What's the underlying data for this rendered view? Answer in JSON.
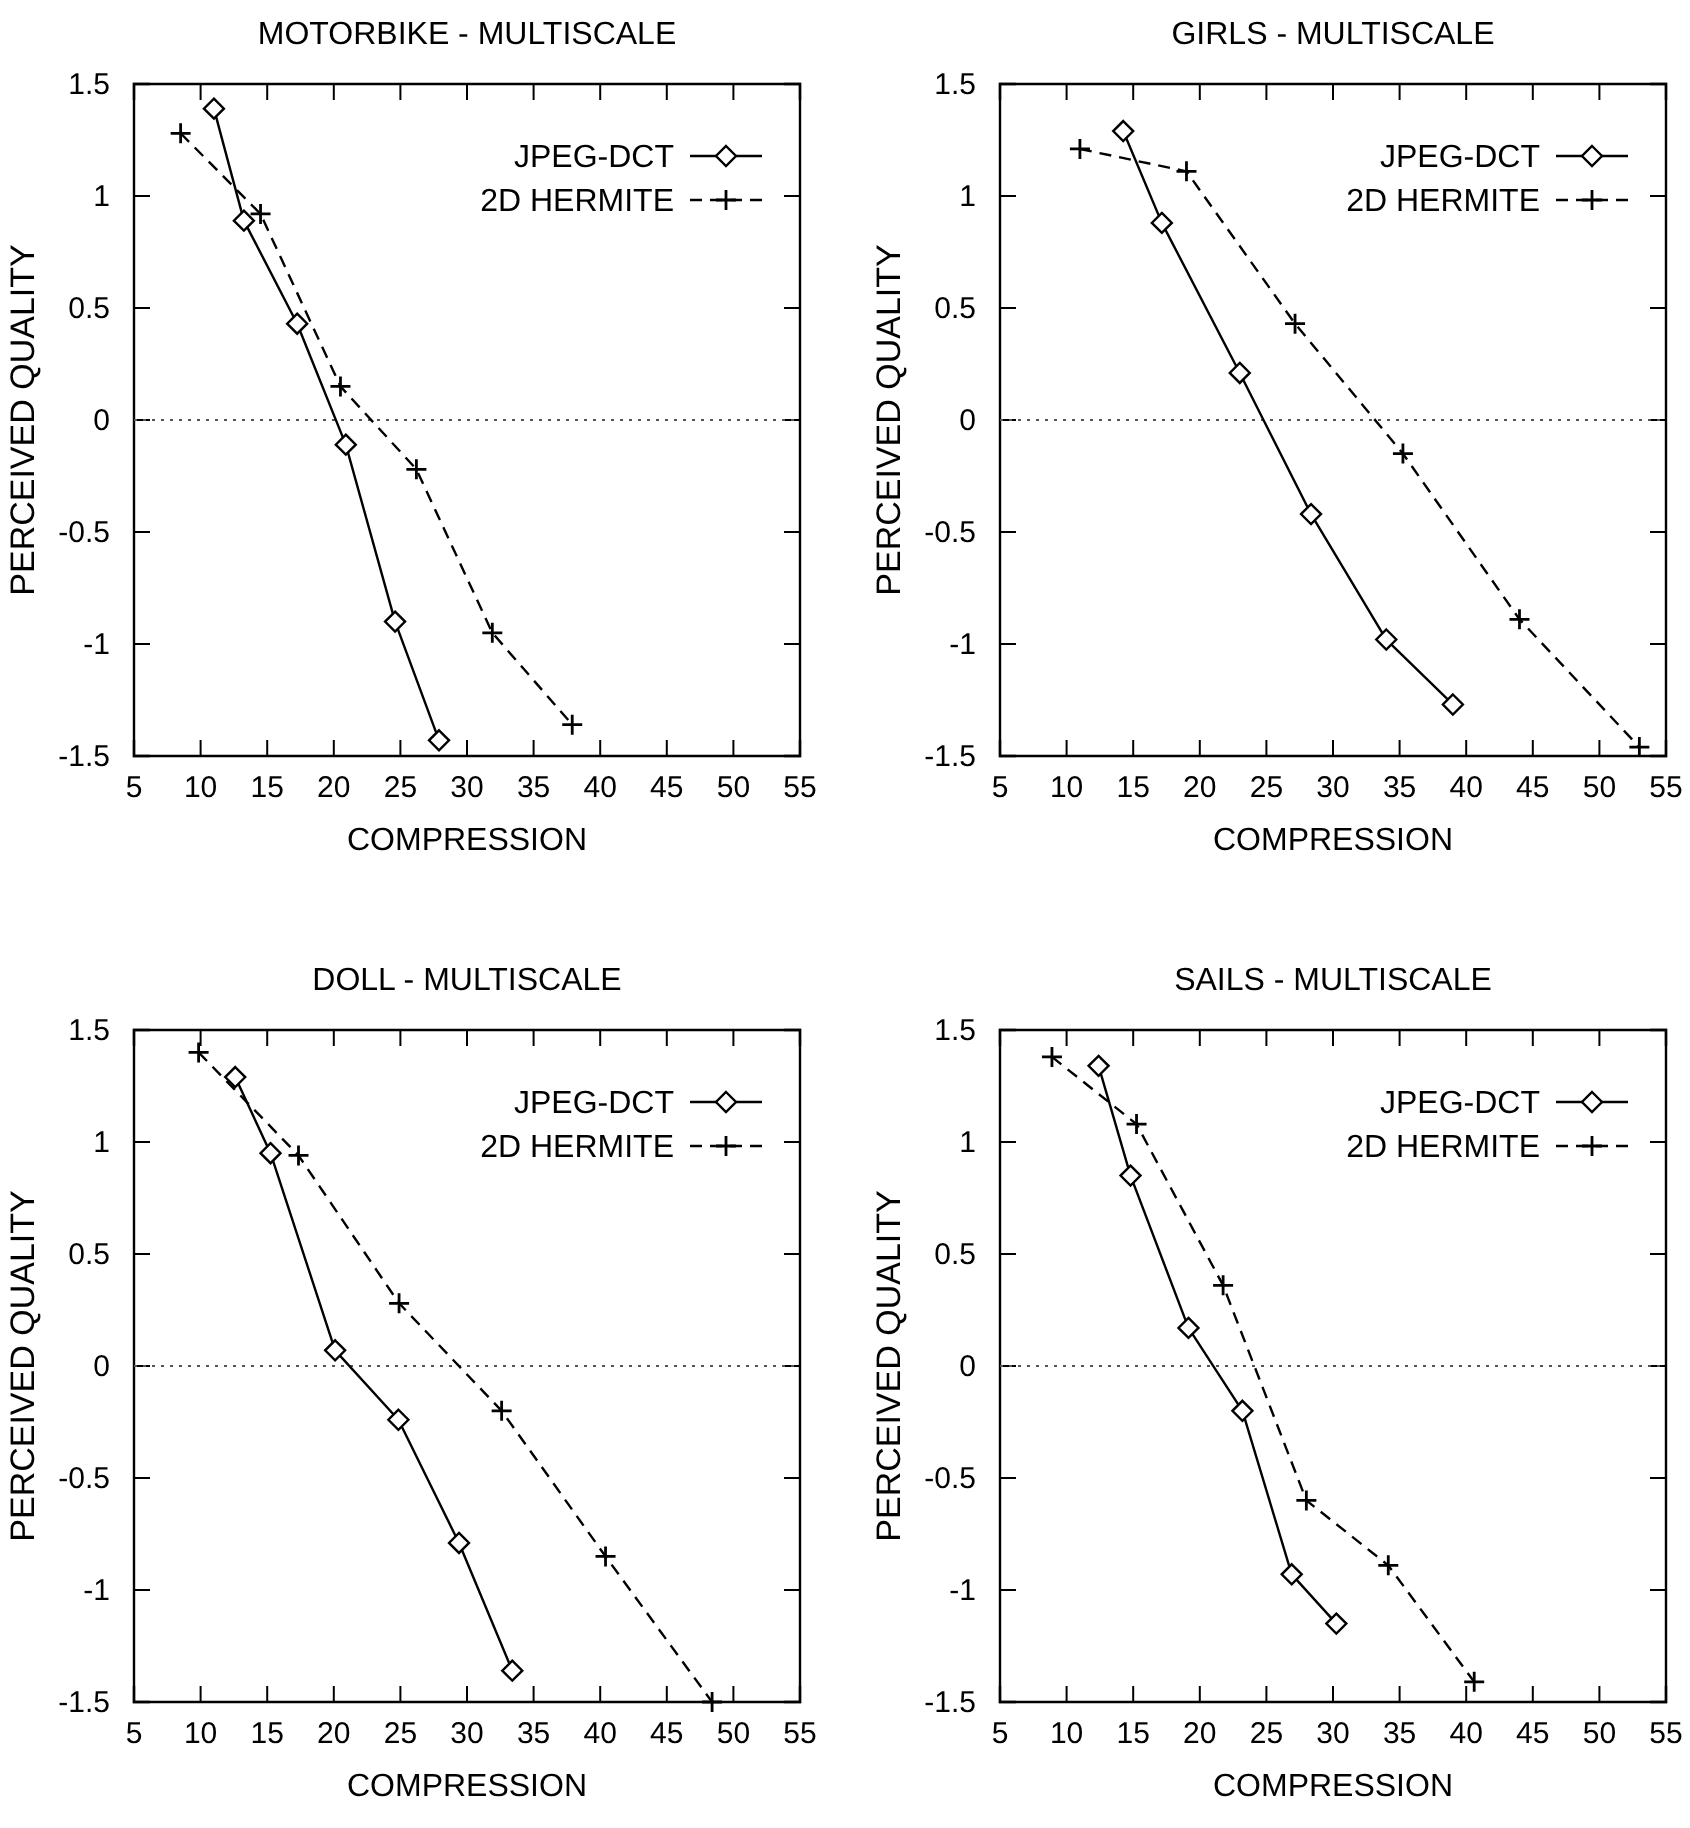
{
  "chart_data": [
    {
      "type": "line",
      "title": "MOTORBIKE  - MULTISCALE",
      "xlabel": "COMPRESSION",
      "ylabel": "PERCEIVED QUALITY",
      "xlim": [
        5,
        55
      ],
      "xticks": [
        5,
        10,
        15,
        20,
        25,
        30,
        35,
        40,
        45,
        50,
        55
      ],
      "ylim": [
        -1.5,
        1.5
      ],
      "yticks": [
        -1.5,
        -1,
        -0.5,
        0,
        0.5,
        1,
        1.5
      ],
      "legend": "top right",
      "grid": false,
      "ref_lines": [
        {
          "axis": "y",
          "value": 0,
          "line_style": "dotted"
        }
      ],
      "series": [
        {
          "name": "JPEG-DCT",
          "color": "#000000",
          "marker": "diamond",
          "line_style": "solid",
          "x": [
            11,
            13.25,
            17.25,
            20.9,
            24.6,
            27.9
          ],
          "values": [
            1.39,
            0.89,
            0.43,
            -0.11,
            -0.9,
            -1.43
          ]
        },
        {
          "name": "2D HERMITE",
          "color": "#000000",
          "marker": "cross",
          "line_style": "dashed",
          "x": [
            8.5,
            14.5,
            20.5,
            26.2,
            31.9,
            37.9
          ],
          "values": [
            1.28,
            0.92,
            0.15,
            -0.22,
            -0.95,
            -1.36
          ]
        }
      ]
    },
    {
      "type": "line",
      "title": "GIRLS  - MULTISCALE",
      "xlabel": "COMPRESSION",
      "ylabel": "PERCEIVED QUALITY",
      "xlim": [
        5,
        55
      ],
      "xticks": [
        5,
        10,
        15,
        20,
        25,
        30,
        35,
        40,
        45,
        50,
        55
      ],
      "ylim": [
        -1.5,
        1.5
      ],
      "yticks": [
        -1.5,
        -1,
        -0.5,
        0,
        0.5,
        1,
        1.5
      ],
      "legend": "top right",
      "grid": false,
      "ref_lines": [
        {
          "axis": "y",
          "value": 0,
          "line_style": "dotted"
        }
      ],
      "series": [
        {
          "name": "JPEG-DCT",
          "color": "#000000",
          "marker": "diamond",
          "line_style": "solid",
          "x": [
            14.25,
            17.15,
            23,
            28.35,
            34,
            39
          ],
          "values": [
            1.29,
            0.88,
            0.21,
            -0.42,
            -0.98,
            -1.27
          ]
        },
        {
          "name": "2D HERMITE",
          "color": "#000000",
          "marker": "cross",
          "line_style": "dashed",
          "x": [
            11,
            19,
            27.15,
            35.25,
            44,
            53
          ],
          "values": [
            1.21,
            1.11,
            0.43,
            -0.15,
            -0.89,
            -1.46
          ]
        }
      ]
    },
    {
      "type": "line",
      "title": "DOLL  - MULTISCALE",
      "xlabel": "COMPRESSION",
      "ylabel": "PERCEIVED QUALITY",
      "xlim": [
        5,
        55
      ],
      "xticks": [
        5,
        10,
        15,
        20,
        25,
        30,
        35,
        40,
        45,
        50,
        55
      ],
      "ylim": [
        -1.5,
        1.5
      ],
      "yticks": [
        -1.5,
        -1,
        -0.5,
        0,
        0.5,
        1,
        1.5
      ],
      "legend": "top right",
      "grid": false,
      "ref_lines": [
        {
          "axis": "y",
          "value": 0,
          "line_style": "dotted"
        }
      ],
      "series": [
        {
          "name": "JPEG-DCT",
          "color": "#000000",
          "marker": "diamond",
          "line_style": "solid",
          "x": [
            12.6,
            15.25,
            20.1,
            24.85,
            29.4,
            33.4
          ],
          "values": [
            1.29,
            0.95,
            0.07,
            -0.24,
            -0.79,
            -1.36
          ]
        },
        {
          "name": "2D HERMITE",
          "color": "#000000",
          "marker": "cross",
          "line_style": "dashed",
          "x": [
            9.85,
            17.35,
            24.9,
            32.6,
            40.4,
            48.4
          ],
          "values": [
            1.4,
            0.94,
            0.28,
            -0.2,
            -0.85,
            -1.5
          ]
        }
      ]
    },
    {
      "type": "line",
      "title": "SAILS  - MULTISCALE",
      "xlabel": "COMPRESSION",
      "ylabel": "PERCEIVED QUALITY",
      "xlim": [
        5,
        55
      ],
      "xticks": [
        5,
        10,
        15,
        20,
        25,
        30,
        35,
        40,
        45,
        50,
        55
      ],
      "ylim": [
        -1.5,
        1.5
      ],
      "yticks": [
        -1.5,
        -1,
        -0.5,
        0,
        0.5,
        1,
        1.5
      ],
      "legend": "top right",
      "grid": false,
      "ref_lines": [
        {
          "axis": "y",
          "value": 0,
          "line_style": "dotted"
        }
      ],
      "series": [
        {
          "name": "JPEG-DCT",
          "color": "#000000",
          "marker": "diamond",
          "line_style": "solid",
          "x": [
            12.4,
            14.8,
            19.15,
            23.2,
            26.9,
            30.25
          ],
          "values": [
            1.34,
            0.85,
            0.17,
            -0.2,
            -0.93,
            -1.15
          ]
        },
        {
          "name": "2D HERMITE",
          "color": "#000000",
          "marker": "cross",
          "line_style": "dashed",
          "x": [
            8.9,
            15.25,
            21.75,
            28,
            34.15,
            40.6
          ],
          "values": [
            1.38,
            1.08,
            0.36,
            -0.6,
            -0.89,
            -1.41
          ]
        }
      ]
    }
  ]
}
